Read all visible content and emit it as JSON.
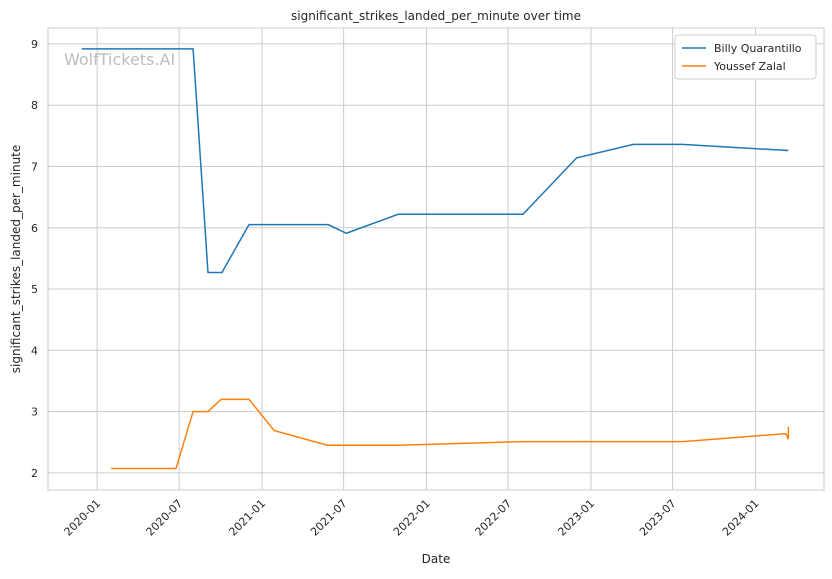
{
  "chart_data": {
    "type": "line",
    "title": "significant_strikes_landed_per_minute over time",
    "xlabel": "Date",
    "ylabel": "significant_strikes_landed_per_minute",
    "watermark": "WolfTickets.AI",
    "xlim": [
      "2019-09-14",
      "2024-06-01"
    ],
    "ylim": [
      1.72,
      9.26
    ],
    "x_ticks": [
      "2020-01",
      "2020-07",
      "2021-01",
      "2021-07",
      "2022-01",
      "2022-07",
      "2023-01",
      "2023-07",
      "2024-01"
    ],
    "y_ticks": [
      2,
      3,
      4,
      5,
      6,
      7,
      8,
      9
    ],
    "grid": true,
    "legend_position": "top-right",
    "series": [
      {
        "name": "Billy Quarantillo",
        "color": "#1f77b4",
        "points": [
          [
            "2019-11-28",
            8.92
          ],
          [
            "2020-08-01",
            8.92
          ],
          [
            "2020-09-03",
            5.27
          ],
          [
            "2020-10-04",
            5.27
          ],
          [
            "2020-12-03",
            6.05
          ],
          [
            "2021-05-28",
            6.05
          ],
          [
            "2021-07-07",
            5.91
          ],
          [
            "2021-10-30",
            6.22
          ],
          [
            "2022-08-03",
            6.22
          ],
          [
            "2022-11-30",
            7.14
          ],
          [
            "2023-04-05",
            7.36
          ],
          [
            "2023-07-22",
            7.36
          ],
          [
            "2024-03-14",
            7.26
          ]
        ]
      },
      {
        "name": "Youssef Zalal",
        "color": "#ff7f0e",
        "points": [
          [
            "2020-02-01",
            2.07
          ],
          [
            "2020-06-24",
            2.07
          ],
          [
            "2020-08-01",
            3.0
          ],
          [
            "2020-09-03",
            3.0
          ],
          [
            "2020-10-02",
            3.2
          ],
          [
            "2020-12-03",
            3.2
          ],
          [
            "2021-01-28",
            2.69
          ],
          [
            "2021-05-26",
            2.45
          ],
          [
            "2021-10-30",
            2.45
          ],
          [
            "2022-08-03",
            2.51
          ],
          [
            "2023-07-24",
            2.51
          ],
          [
            "2024-03-08",
            2.64
          ],
          [
            "2024-03-14",
            2.55
          ],
          [
            "2024-03-14",
            2.75
          ]
        ]
      }
    ]
  }
}
